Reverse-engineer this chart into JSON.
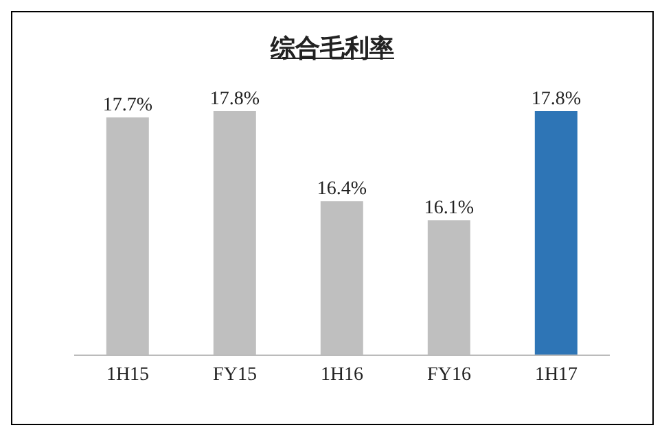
{
  "chart_data": {
    "type": "bar",
    "title": "综合毛利率",
    "categories": [
      "1H15",
      "FY15",
      "1H16",
      "FY16",
      "1H17"
    ],
    "values": [
      17.7,
      17.8,
      16.4,
      16.1,
      17.8
    ],
    "colors": [
      "#bfbfbf",
      "#bfbfbf",
      "#bfbfbf",
      "#bfbfbf",
      "#2e75b6"
    ],
    "value_labels": [
      "17.7%",
      "17.8%",
      "16.4%",
      "16.1%",
      "17.8%"
    ],
    "ylim": [
      14,
      17.8
    ],
    "tick_labels": "x"
  }
}
